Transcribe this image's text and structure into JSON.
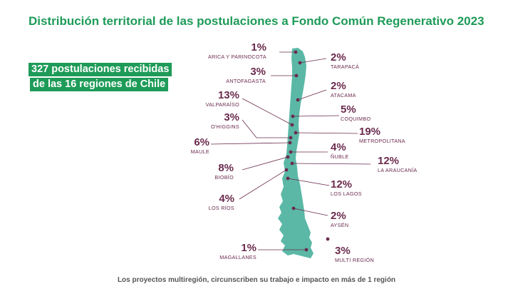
{
  "title": "Distribución territorial de las postulaciones a Fondo Común Regenerativo 2023",
  "highlight": {
    "line1": "327 postulaciones recibidas",
    "line2": "de las 16 regiones de Chile"
  },
  "colors": {
    "title": "#1e9b58",
    "highlight_bg": "#1e9b58",
    "map": "#5bb8a6",
    "labels": "#6b2b4e"
  },
  "regions": [
    {
      "name": "ARICA Y PARINOCOTA",
      "pct": "1%"
    },
    {
      "name": "TARAPACÁ",
      "pct": "2%"
    },
    {
      "name": "ANTOFAGASTA",
      "pct": "3%"
    },
    {
      "name": "ATACAMA",
      "pct": "2%"
    },
    {
      "name": "VALPARAÍSO",
      "pct": "13%"
    },
    {
      "name": "COQUIMBO",
      "pct": "5%"
    },
    {
      "name": "O'HIGGINS",
      "pct": "3%"
    },
    {
      "name": "METROPOLITANA",
      "pct": "19%"
    },
    {
      "name": "MAULE",
      "pct": "6%"
    },
    {
      "name": "ÑUBLE",
      "pct": "4%"
    },
    {
      "name": "LA ARAUCANÍA",
      "pct": "12%"
    },
    {
      "name": "BIOBÍO",
      "pct": "8%"
    },
    {
      "name": "LOS LAGOS",
      "pct": "12%"
    },
    {
      "name": "LOS RÍOS",
      "pct": "4%"
    },
    {
      "name": "AYSÉN",
      "pct": "2%"
    },
    {
      "name": "MAGALLANES",
      "pct": "1%"
    },
    {
      "name": "MULTI REGIÓN",
      "pct": "3%"
    }
  ],
  "footnote": "Los proyectos multiregión, circunscriben su trabajo e impacto en más de 1 región"
}
